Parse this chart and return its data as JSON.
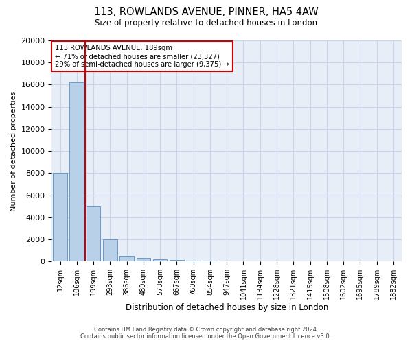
{
  "title_line1": "113, ROWLANDS AVENUE, PINNER, HA5 4AW",
  "title_line2": "Size of property relative to detached houses in London",
  "xlabel": "Distribution of detached houses by size in London",
  "ylabel": "Number of detached properties",
  "categories": [
    "12sqm",
    "106sqm",
    "199sqm",
    "293sqm",
    "386sqm",
    "480sqm",
    "573sqm",
    "667sqm",
    "760sqm",
    "854sqm",
    "947sqm",
    "1041sqm",
    "1134sqm",
    "1228sqm",
    "1321sqm",
    "1415sqm",
    "1508sqm",
    "1602sqm",
    "1695sqm",
    "1789sqm",
    "1882sqm"
  ],
  "values": [
    8000,
    16200,
    5000,
    2000,
    500,
    300,
    200,
    130,
    80,
    50,
    30,
    20,
    15,
    10,
    8,
    6,
    5,
    4,
    3,
    2,
    2
  ],
  "bar_color": "#b8d0e8",
  "bar_edge_color": "#6699cc",
  "annotation_title": "113 ROWLANDS AVENUE: 189sqm",
  "annotation_line2": "← 71% of detached houses are smaller (23,327)",
  "annotation_line3": "29% of semi-detached houses are larger (9,375) →",
  "annotation_box_color": "#ffffff",
  "annotation_border_color": "#cc0000",
  "vline_color": "#cc0000",
  "ylim": [
    0,
    20000
  ],
  "yticks": [
    0,
    2000,
    4000,
    6000,
    8000,
    10000,
    12000,
    14000,
    16000,
    18000,
    20000
  ],
  "grid_color": "#c8d4e8",
  "bg_color": "#e8eef8",
  "footer_line1": "Contains HM Land Registry data © Crown copyright and database right 2024.",
  "footer_line2": "Contains public sector information licensed under the Open Government Licence v3.0."
}
